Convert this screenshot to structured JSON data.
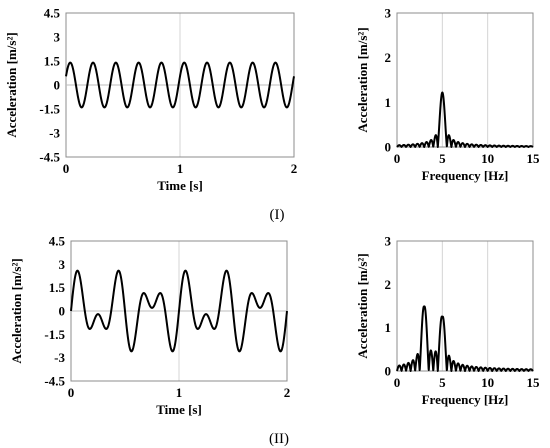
{
  "chart_data": [
    {
      "id": "time-I",
      "type": "line",
      "xlabel": "Time [s]",
      "ylabel": "Acceleration [m/s²]",
      "xlim": [
        0,
        2
      ],
      "ylim": [
        -4.5,
        4.5
      ],
      "xticks": [
        "0",
        "1",
        "2"
      ],
      "yticks": [
        "4.5",
        "3",
        "1.5",
        "0",
        "-1.5",
        "-3",
        "-4.5"
      ],
      "grid": "vertical",
      "signal": {
        "components": [
          {
            "freq_hz": 5,
            "amp": 1.4,
            "phase": 0.4
          }
        ]
      }
    },
    {
      "id": "freq-I",
      "type": "line",
      "xlabel": "Frequency  [Hz]",
      "ylabel": "Acceleration [m/s²]",
      "xlim": [
        0,
        15
      ],
      "ylim": [
        0,
        3
      ],
      "xticks": [
        "0",
        "5",
        "10",
        "15"
      ],
      "yticks": [
        "3",
        "2",
        "1",
        "0"
      ],
      "grid": "vertical",
      "peaks": [
        {
          "freq_hz": 5,
          "amp": 1.22
        }
      ]
    },
    {
      "id": "time-II",
      "type": "line",
      "xlabel": "Time [s]",
      "ylabel": "Acceleration [m/s²]",
      "xlim": [
        0,
        2
      ],
      "ylim": [
        -4.5,
        4.5
      ],
      "xticks": [
        "0",
        "1",
        "2"
      ],
      "yticks": [
        "4.5",
        "3",
        "1.5",
        "0",
        "-1.5",
        "-3",
        "-4.5"
      ],
      "grid": "vertical",
      "signal": {
        "components": [
          {
            "freq_hz": 3,
            "amp": 1.5,
            "phase": 0
          },
          {
            "freq_hz": 5,
            "amp": 1.3,
            "phase": 0
          }
        ]
      }
    },
    {
      "id": "freq-II",
      "type": "line",
      "xlabel": "Frequency  [Hz]",
      "ylabel": "Acceleration [m/s²]",
      "xlim": [
        0,
        15
      ],
      "ylim": [
        0,
        3
      ],
      "xticks": [
        "0",
        "5",
        "10",
        "15"
      ],
      "yticks": [
        "3",
        "2",
        "1",
        "0"
      ],
      "grid": "vertical",
      "peaks": [
        {
          "freq_hz": 3,
          "amp": 1.48
        },
        {
          "freq_hz": 5,
          "amp": 1.24
        }
      ]
    }
  ],
  "captions": {
    "top": "(I)",
    "bottom": "(II)"
  }
}
